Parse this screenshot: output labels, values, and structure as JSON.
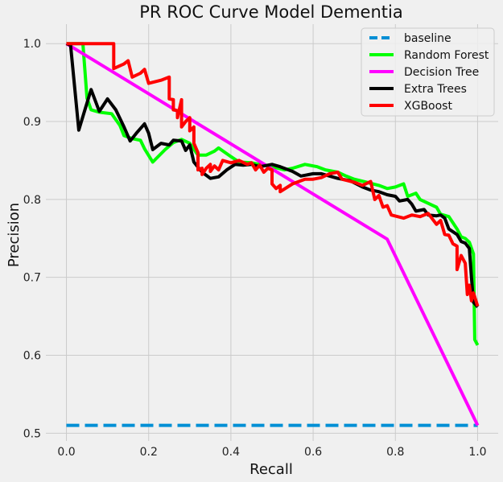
{
  "chart_data": {
    "type": "line",
    "title": "PR ROC Curve Model Dementia",
    "xlabel": "Recall",
    "ylabel": "Precision",
    "xlim": [
      -0.05,
      1.05
    ],
    "ylim": [
      0.49,
      1.025
    ],
    "xticks": [
      0.0,
      0.2,
      0.4,
      0.6,
      0.8,
      1.0
    ],
    "xtick_labels": [
      "0.0",
      "0.2",
      "0.4",
      "0.6",
      "0.8",
      "1.0"
    ],
    "yticks": [
      0.5,
      0.6,
      0.7,
      0.8,
      0.9,
      1.0
    ],
    "ytick_labels": [
      "0.5",
      "0.6",
      "0.7",
      "0.8",
      "0.9",
      "1.0"
    ],
    "grid": true,
    "legend_position": "top-right",
    "series": [
      {
        "name": "baseline",
        "color": "#008fd5",
        "dash": true,
        "points": [
          [
            0.0,
            0.51
          ],
          [
            1.0,
            0.51
          ]
        ]
      },
      {
        "name": "Random Forest",
        "color": "#00ff00",
        "dash": false,
        "points": [
          [
            0.0,
            1.0
          ],
          [
            0.04,
            1.0
          ],
          [
            0.05,
            0.93
          ],
          [
            0.06,
            0.915
          ],
          [
            0.08,
            0.912
          ],
          [
            0.11,
            0.91
          ],
          [
            0.13,
            0.895
          ],
          [
            0.14,
            0.882
          ],
          [
            0.16,
            0.878
          ],
          [
            0.18,
            0.876
          ],
          [
            0.19,
            0.865
          ],
          [
            0.21,
            0.848
          ],
          [
            0.24,
            0.864
          ],
          [
            0.26,
            0.873
          ],
          [
            0.28,
            0.877
          ],
          [
            0.3,
            0.872
          ],
          [
            0.32,
            0.857
          ],
          [
            0.34,
            0.857
          ],
          [
            0.36,
            0.862
          ],
          [
            0.37,
            0.866
          ],
          [
            0.4,
            0.855
          ],
          [
            0.42,
            0.848
          ],
          [
            0.45,
            0.847
          ],
          [
            0.47,
            0.845
          ],
          [
            0.5,
            0.842
          ],
          [
            0.53,
            0.838
          ],
          [
            0.55,
            0.84
          ],
          [
            0.58,
            0.845
          ],
          [
            0.61,
            0.842
          ],
          [
            0.63,
            0.838
          ],
          [
            0.66,
            0.835
          ],
          [
            0.68,
            0.83
          ],
          [
            0.7,
            0.826
          ],
          [
            0.73,
            0.822
          ],
          [
            0.76,
            0.818
          ],
          [
            0.78,
            0.814
          ],
          [
            0.8,
            0.816
          ],
          [
            0.82,
            0.82
          ],
          [
            0.83,
            0.804
          ],
          [
            0.85,
            0.808
          ],
          [
            0.86,
            0.8
          ],
          [
            0.88,
            0.795
          ],
          [
            0.9,
            0.79
          ],
          [
            0.91,
            0.781
          ],
          [
            0.93,
            0.778
          ],
          [
            0.94,
            0.77
          ],
          [
            0.95,
            0.762
          ],
          [
            0.96,
            0.752
          ],
          [
            0.97,
            0.75
          ],
          [
            0.98,
            0.745
          ],
          [
            0.99,
            0.73
          ],
          [
            0.993,
            0.62
          ],
          [
            1.0,
            0.613
          ]
        ]
      },
      {
        "name": "Decision Tree",
        "color": "#ff00ff",
        "dash": false,
        "points": [
          [
            0.0,
            1.0
          ],
          [
            0.78,
            0.749
          ],
          [
            1.0,
            0.51
          ]
        ]
      },
      {
        "name": "Extra Trees",
        "color": "#000000",
        "dash": false,
        "points": [
          [
            0.0,
            1.0
          ],
          [
            0.01,
            0.998
          ],
          [
            0.03,
            0.889
          ],
          [
            0.045,
            0.915
          ],
          [
            0.06,
            0.941
          ],
          [
            0.08,
            0.913
          ],
          [
            0.1,
            0.929
          ],
          [
            0.12,
            0.915
          ],
          [
            0.14,
            0.893
          ],
          [
            0.155,
            0.875
          ],
          [
            0.17,
            0.885
          ],
          [
            0.19,
            0.897
          ],
          [
            0.2,
            0.885
          ],
          [
            0.21,
            0.864
          ],
          [
            0.23,
            0.872
          ],
          [
            0.25,
            0.87
          ],
          [
            0.26,
            0.876
          ],
          [
            0.28,
            0.875
          ],
          [
            0.29,
            0.863
          ],
          [
            0.3,
            0.87
          ],
          [
            0.31,
            0.848
          ],
          [
            0.33,
            0.835
          ],
          [
            0.35,
            0.827
          ],
          [
            0.37,
            0.829
          ],
          [
            0.39,
            0.838
          ],
          [
            0.41,
            0.845
          ],
          [
            0.43,
            0.844
          ],
          [
            0.45,
            0.845
          ],
          [
            0.47,
            0.842
          ],
          [
            0.5,
            0.845
          ],
          [
            0.52,
            0.842
          ],
          [
            0.55,
            0.836
          ],
          [
            0.57,
            0.83
          ],
          [
            0.6,
            0.833
          ],
          [
            0.62,
            0.833
          ],
          [
            0.64,
            0.83
          ],
          [
            0.66,
            0.827
          ],
          [
            0.69,
            0.824
          ],
          [
            0.72,
            0.816
          ],
          [
            0.74,
            0.812
          ],
          [
            0.76,
            0.81
          ],
          [
            0.78,
            0.806
          ],
          [
            0.8,
            0.804
          ],
          [
            0.81,
            0.798
          ],
          [
            0.83,
            0.8
          ],
          [
            0.84,
            0.794
          ],
          [
            0.85,
            0.785
          ],
          [
            0.87,
            0.787
          ],
          [
            0.88,
            0.78
          ],
          [
            0.9,
            0.779
          ],
          [
            0.91,
            0.78
          ],
          [
            0.92,
            0.776
          ],
          [
            0.93,
            0.762
          ],
          [
            0.95,
            0.755
          ],
          [
            0.96,
            0.746
          ],
          [
            0.97,
            0.744
          ],
          [
            0.98,
            0.737
          ],
          [
            0.985,
            0.7
          ],
          [
            0.99,
            0.668
          ],
          [
            1.0,
            0.662
          ]
        ]
      },
      {
        "name": "XGBoost",
        "color": "#ff0000",
        "dash": false,
        "points": [
          [
            0.0,
            1.0
          ],
          [
            0.115,
            1.0
          ],
          [
            0.115,
            0.968
          ],
          [
            0.14,
            0.974
          ],
          [
            0.15,
            0.978
          ],
          [
            0.16,
            0.957
          ],
          [
            0.18,
            0.962
          ],
          [
            0.19,
            0.967
          ],
          [
            0.2,
            0.949
          ],
          [
            0.23,
            0.953
          ],
          [
            0.25,
            0.957
          ],
          [
            0.25,
            0.929
          ],
          [
            0.26,
            0.928
          ],
          [
            0.26,
            0.915
          ],
          [
            0.27,
            0.914
          ],
          [
            0.27,
            0.905
          ],
          [
            0.28,
            0.928
          ],
          [
            0.28,
            0.893
          ],
          [
            0.29,
            0.9
          ],
          [
            0.3,
            0.905
          ],
          [
            0.3,
            0.888
          ],
          [
            0.31,
            0.893
          ],
          [
            0.31,
            0.872
          ],
          [
            0.32,
            0.86
          ],
          [
            0.32,
            0.838
          ],
          [
            0.33,
            0.84
          ],
          [
            0.33,
            0.832
          ],
          [
            0.34,
            0.84
          ],
          [
            0.35,
            0.845
          ],
          [
            0.35,
            0.836
          ],
          [
            0.36,
            0.843
          ],
          [
            0.37,
            0.838
          ],
          [
            0.38,
            0.85
          ],
          [
            0.4,
            0.847
          ],
          [
            0.42,
            0.85
          ],
          [
            0.44,
            0.845
          ],
          [
            0.45,
            0.847
          ],
          [
            0.46,
            0.838
          ],
          [
            0.47,
            0.844
          ],
          [
            0.48,
            0.835
          ],
          [
            0.49,
            0.84
          ],
          [
            0.5,
            0.838
          ],
          [
            0.5,
            0.82
          ],
          [
            0.51,
            0.814
          ],
          [
            0.52,
            0.818
          ],
          [
            0.52,
            0.81
          ],
          [
            0.55,
            0.82
          ],
          [
            0.58,
            0.826
          ],
          [
            0.6,
            0.826
          ],
          [
            0.62,
            0.828
          ],
          [
            0.64,
            0.833
          ],
          [
            0.66,
            0.835
          ],
          [
            0.67,
            0.826
          ],
          [
            0.7,
            0.822
          ],
          [
            0.72,
            0.818
          ],
          [
            0.74,
            0.823
          ],
          [
            0.75,
            0.8
          ],
          [
            0.76,
            0.805
          ],
          [
            0.77,
            0.79
          ],
          [
            0.78,
            0.792
          ],
          [
            0.79,
            0.78
          ],
          [
            0.82,
            0.776
          ],
          [
            0.84,
            0.78
          ],
          [
            0.86,
            0.778
          ],
          [
            0.88,
            0.782
          ],
          [
            0.9,
            0.768
          ],
          [
            0.91,
            0.773
          ],
          [
            0.92,
            0.755
          ],
          [
            0.93,
            0.754
          ],
          [
            0.94,
            0.743
          ],
          [
            0.95,
            0.74
          ],
          [
            0.95,
            0.71
          ],
          [
            0.96,
            0.728
          ],
          [
            0.97,
            0.718
          ],
          [
            0.975,
            0.678
          ],
          [
            0.98,
            0.69
          ],
          [
            0.985,
            0.67
          ],
          [
            0.99,
            0.68
          ],
          [
            1.0,
            0.663
          ]
        ]
      }
    ]
  }
}
